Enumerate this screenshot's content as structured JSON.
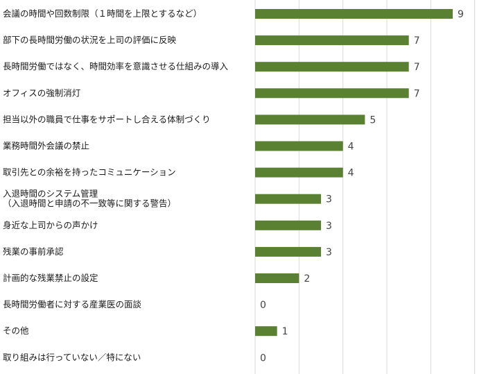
{
  "chart_data": {
    "type": "bar",
    "orientation": "horizontal",
    "categories": [
      [
        "会議の時間や回数制限（１時間を上限とするなど）"
      ],
      [
        "部下の長時間労働の状況を上司の評価に反映"
      ],
      [
        "長時間労働ではなく、時間効率を意識させる仕組みの導入"
      ],
      [
        "オフィスの強制消灯"
      ],
      [
        "担当以外の職員で仕事をサポートし合える体制づくり"
      ],
      [
        "業務時間外会議の禁止"
      ],
      [
        "取引先との余裕を持ったコミュニケーション"
      ],
      [
        "入退時間のシステム管理",
        "（入退時間と申請の不一致等に関する警告）"
      ],
      [
        "身近な上司からの声かけ"
      ],
      [
        "残業の事前承認"
      ],
      [
        "計画的な残業禁止の設定"
      ],
      [
        "長時間労働者に対する産業医の面談"
      ],
      [
        "その他"
      ],
      [
        "取り組みは行っていない／特にない"
      ]
    ],
    "values": [
      9,
      7,
      7,
      7,
      5,
      4,
      4,
      3,
      3,
      3,
      2,
      0,
      1,
      0
    ],
    "xlim": [
      0,
      10
    ],
    "grid": true,
    "legend": "none",
    "bar_color": "#5a8031",
    "grid_color": "#d9d9d9"
  }
}
